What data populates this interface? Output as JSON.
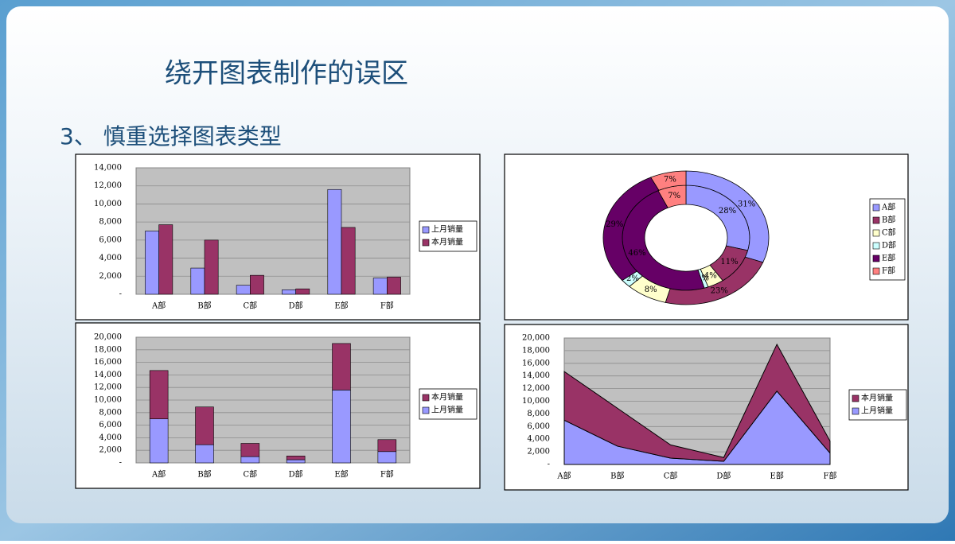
{
  "slide": {
    "title": "绕开图表制作的误区",
    "subtitle": "3、 慎重选择图表类型"
  },
  "chart_data": [
    {
      "type": "bar",
      "categories": [
        "A部",
        "B部",
        "C部",
        "D部",
        "E部",
        "F部"
      ],
      "series": [
        {
          "name": "上月销量",
          "color": "#9999ff",
          "values": [
            7000,
            2900,
            1000,
            500,
            11600,
            1800
          ]
        },
        {
          "name": "本月销量",
          "color": "#993366",
          "values": [
            7700,
            6000,
            2100,
            600,
            7400,
            1900
          ]
        }
      ],
      "ylim": [
        0,
        14000
      ],
      "yticks": [
        {
          "value": 0,
          "label": "-"
        },
        {
          "value": 2000,
          "label": "2,000"
        },
        {
          "value": 4000,
          "label": "4,000"
        },
        {
          "value": 6000,
          "label": "6,000"
        },
        {
          "value": 8000,
          "label": "8,000"
        },
        {
          "value": 10000,
          "label": "10,000"
        },
        {
          "value": 12000,
          "label": "12,000"
        },
        {
          "value": 14000,
          "label": "14,000"
        }
      ],
      "grid": true,
      "legend": "right"
    },
    {
      "type": "stacked-bar",
      "categories": [
        "A部",
        "B部",
        "C部",
        "D部",
        "E部",
        "F部"
      ],
      "series": [
        {
          "name": "上月销量",
          "color": "#9999ff",
          "values": [
            7000,
            2900,
            1000,
            500,
            11600,
            1800
          ]
        },
        {
          "name": "本月销量",
          "color": "#993366",
          "values": [
            7700,
            6000,
            2100,
            600,
            7400,
            1900
          ]
        }
      ],
      "ylim": [
        0,
        20000
      ],
      "yticks": [
        {
          "value": 0,
          "label": "-"
        },
        {
          "value": 2000,
          "label": "2,000"
        },
        {
          "value": 4000,
          "label": "4,000"
        },
        {
          "value": 6000,
          "label": "6,000"
        },
        {
          "value": 8000,
          "label": "8,000"
        },
        {
          "value": 10000,
          "label": "10,000"
        },
        {
          "value": 12000,
          "label": "12,000"
        },
        {
          "value": 14000,
          "label": "14,000"
        },
        {
          "value": 16000,
          "label": "16,000"
        },
        {
          "value": 18000,
          "label": "18,000"
        },
        {
          "value": 20000,
          "label": "20,000"
        }
      ],
      "grid": true,
      "legend": "right",
      "legend_reversed": true
    },
    {
      "type": "donut",
      "categories": [
        "A部",
        "B部",
        "C部",
        "D部",
        "E部",
        "F部"
      ],
      "colors": [
        "#9999ff",
        "#993366",
        "#ffffcc",
        "#ccffff",
        "#660066",
        "#ff8080"
      ],
      "series": [
        {
          "values": [
            28,
            11,
            4,
            1,
            46,
            7
          ],
          "value_labels": [
            "28%",
            "11%",
            "4%",
            "1%",
            "46%",
            "7%"
          ]
        },
        {
          "values": [
            31,
            23,
            8,
            2,
            29,
            7
          ],
          "value_labels": [
            "31%",
            "23%",
            "8%",
            "2%",
            "29%",
            "7%"
          ]
        }
      ],
      "legend": "right"
    },
    {
      "type": "stacked-area",
      "categories": [
        "A部",
        "B部",
        "C部",
        "D部",
        "E部",
        "F部"
      ],
      "series": [
        {
          "name": "上月销量",
          "color": "#9999ff",
          "values": [
            7000,
            2900,
            1000,
            500,
            11600,
            1800
          ]
        },
        {
          "name": "本月销量",
          "color": "#993366",
          "values": [
            7700,
            6000,
            2100,
            600,
            7400,
            1900
          ]
        }
      ],
      "ylim": [
        0,
        20000
      ],
      "yticks": [
        {
          "value": 0,
          "label": "-"
        },
        {
          "value": 2000,
          "label": "2,000"
        },
        {
          "value": 4000,
          "label": "4,000"
        },
        {
          "value": 6000,
          "label": "6,000"
        },
        {
          "value": 8000,
          "label": "8,000"
        },
        {
          "value": 10000,
          "label": "10,000"
        },
        {
          "value": 12000,
          "label": "12,000"
        },
        {
          "value": 14000,
          "label": "14,000"
        },
        {
          "value": 16000,
          "label": "16,000"
        },
        {
          "value": 18000,
          "label": "18,000"
        },
        {
          "value": 20000,
          "label": "20,000"
        }
      ],
      "grid": true,
      "legend": "right",
      "legend_reversed": true
    }
  ]
}
